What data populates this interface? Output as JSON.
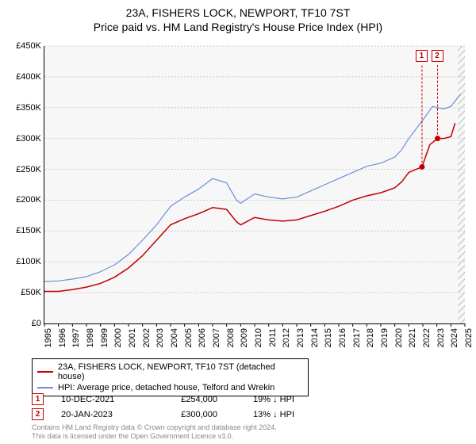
{
  "title": "23A, FISHERS LOCK, NEWPORT, TF10 7ST",
  "subtitle": "Price paid vs. HM Land Registry's House Price Index (HPI)",
  "chart": {
    "background_color": "#f7f7f7",
    "grid_color": "#cccccc",
    "border_color": "#000000",
    "ylim": [
      0,
      450000
    ],
    "ytick_step": 50000,
    "yticks": [
      "£0",
      "£50K",
      "£100K",
      "£150K",
      "£200K",
      "£250K",
      "£300K",
      "£350K",
      "£400K",
      "£450K"
    ],
    "xlim": [
      1995,
      2025
    ],
    "xticks": [
      "1995",
      "1996",
      "1997",
      "1998",
      "1999",
      "2000",
      "2001",
      "2002",
      "2003",
      "2004",
      "2005",
      "2006",
      "2007",
      "2008",
      "2009",
      "2010",
      "2011",
      "2012",
      "2013",
      "2014",
      "2015",
      "2016",
      "2017",
      "2018",
      "2019",
      "2020",
      "2021",
      "2022",
      "2023",
      "2024",
      "2025"
    ],
    "hatched_region": {
      "x_start": 2024.5,
      "x_end": 2025,
      "color": "#bbbbbb"
    },
    "series": [
      {
        "id": "property",
        "label": "23A, FISHERS LOCK, NEWPORT, TF10 7ST (detached house)",
        "color": "#c00000",
        "line_width": 1.5,
        "data": [
          [
            1995,
            52000
          ],
          [
            1996,
            52000
          ],
          [
            1997,
            55000
          ],
          [
            1998,
            59000
          ],
          [
            1999,
            65000
          ],
          [
            2000,
            75000
          ],
          [
            2001,
            90000
          ],
          [
            2002,
            110000
          ],
          [
            2003,
            135000
          ],
          [
            2004,
            160000
          ],
          [
            2005,
            170000
          ],
          [
            2006,
            178000
          ],
          [
            2007,
            188000
          ],
          [
            2008,
            185000
          ],
          [
            2008.7,
            165000
          ],
          [
            2009,
            160000
          ],
          [
            2010,
            172000
          ],
          [
            2011,
            168000
          ],
          [
            2012,
            166000
          ],
          [
            2013,
            168000
          ],
          [
            2014,
            175000
          ],
          [
            2015,
            182000
          ],
          [
            2016,
            190000
          ],
          [
            2017,
            200000
          ],
          [
            2018,
            207000
          ],
          [
            2019,
            212000
          ],
          [
            2020,
            220000
          ],
          [
            2020.5,
            230000
          ],
          [
            2021,
            245000
          ],
          [
            2021.94,
            254000
          ],
          [
            2022.5,
            290000
          ],
          [
            2023.05,
            300000
          ],
          [
            2023.5,
            300000
          ],
          [
            2024,
            303000
          ],
          [
            2024.3,
            325000
          ]
        ]
      },
      {
        "id": "hpi",
        "label": "HPI: Average price, detached house, Telford and Wrekin",
        "color": "#6e8fd8",
        "line_width": 1.2,
        "data": [
          [
            1995,
            68000
          ],
          [
            1996,
            69000
          ],
          [
            1997,
            72000
          ],
          [
            1998,
            76000
          ],
          [
            1999,
            84000
          ],
          [
            2000,
            95000
          ],
          [
            2001,
            112000
          ],
          [
            2002,
            135000
          ],
          [
            2003,
            160000
          ],
          [
            2004,
            190000
          ],
          [
            2005,
            205000
          ],
          [
            2006,
            218000
          ],
          [
            2007,
            235000
          ],
          [
            2008,
            228000
          ],
          [
            2008.7,
            200000
          ],
          [
            2009,
            195000
          ],
          [
            2010,
            210000
          ],
          [
            2011,
            205000
          ],
          [
            2012,
            202000
          ],
          [
            2013,
            205000
          ],
          [
            2014,
            215000
          ],
          [
            2015,
            225000
          ],
          [
            2016,
            235000
          ],
          [
            2017,
            245000
          ],
          [
            2018,
            255000
          ],
          [
            2019,
            260000
          ],
          [
            2020,
            270000
          ],
          [
            2020.5,
            282000
          ],
          [
            2021,
            300000
          ],
          [
            2022,
            330000
          ],
          [
            2022.7,
            352000
          ],
          [
            2023,
            350000
          ],
          [
            2023.5,
            348000
          ],
          [
            2024,
            352000
          ],
          [
            2024.7,
            372000
          ]
        ]
      }
    ],
    "sale_markers": [
      {
        "id": "1",
        "x": 2021.94,
        "y": 254000,
        "label_x": 2021.5,
        "label_y_top": 63
      },
      {
        "id": "2",
        "x": 2023.05,
        "y": 300000,
        "label_x": 2022.9,
        "label_y_top": 63
      }
    ]
  },
  "legend": {
    "rows": [
      {
        "color": "#c00000",
        "text": "23A, FISHERS LOCK, NEWPORT, TF10 7ST (detached house)"
      },
      {
        "color": "#6e8fd8",
        "text": "HPI: Average price, detached house, Telford and Wrekin"
      }
    ]
  },
  "transactions": [
    {
      "marker": "1",
      "date": "10-DEC-2021",
      "price": "£254,000",
      "pct": "19% ↓ HPI"
    },
    {
      "marker": "2",
      "date": "20-JAN-2023",
      "price": "£300,000",
      "pct": "13% ↓ HPI"
    }
  ],
  "footer": {
    "line1": "Contains HM Land Registry data © Crown copyright and database right 2024.",
    "line2": "This data is licensed under the Open Government Licence v3.0."
  }
}
